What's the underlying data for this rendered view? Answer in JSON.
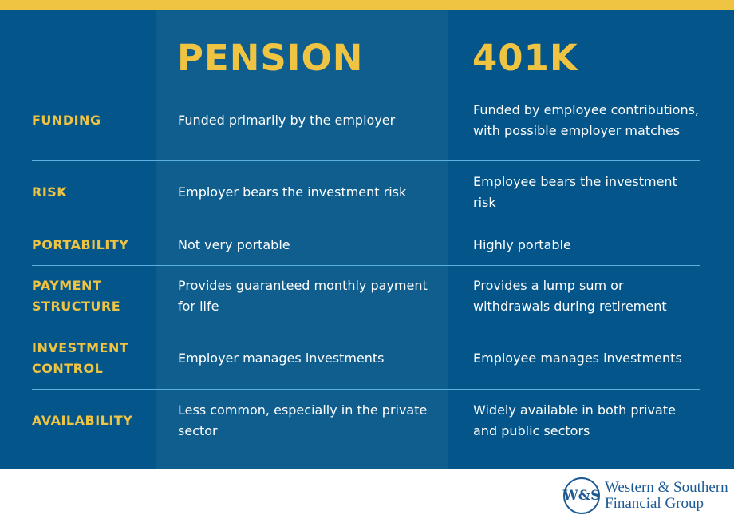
{
  "colors": {
    "accent": "#f0c443",
    "background": "#04558a",
    "pension_column": "#0f5e8e",
    "divider": "#5ab0e0"
  },
  "headers": {
    "pension": "PENSION",
    "k401": "401K"
  },
  "rows": [
    {
      "label": "FUNDING",
      "pension": "Funded primarily by the employer",
      "k401": "Funded by employee contributions, with possible employer matches"
    },
    {
      "label": "RISK",
      "pension": "Employer bears the investment risk",
      "k401": "Employee bears the investment risk"
    },
    {
      "label": "PORTABILITY",
      "pension": "Not very portable",
      "k401": "Highly portable"
    },
    {
      "label": "PAYMENT STRUCTURE",
      "pension": "Provides guaranteed monthly payment for life",
      "k401": "Provides a lump sum or withdrawals during retirement"
    },
    {
      "label": "INVESTMENT CONTROL",
      "pension": "Employer manages investments",
      "k401": "Employee manages investments"
    },
    {
      "label": "AVAILABILITY",
      "pension": "Less common, especially in the private sector",
      "k401": "Widely available in both private and public sectors"
    }
  ],
  "logo": {
    "seal": "W&S",
    "line1": "Western & Southern",
    "line2": "Financial Group"
  }
}
